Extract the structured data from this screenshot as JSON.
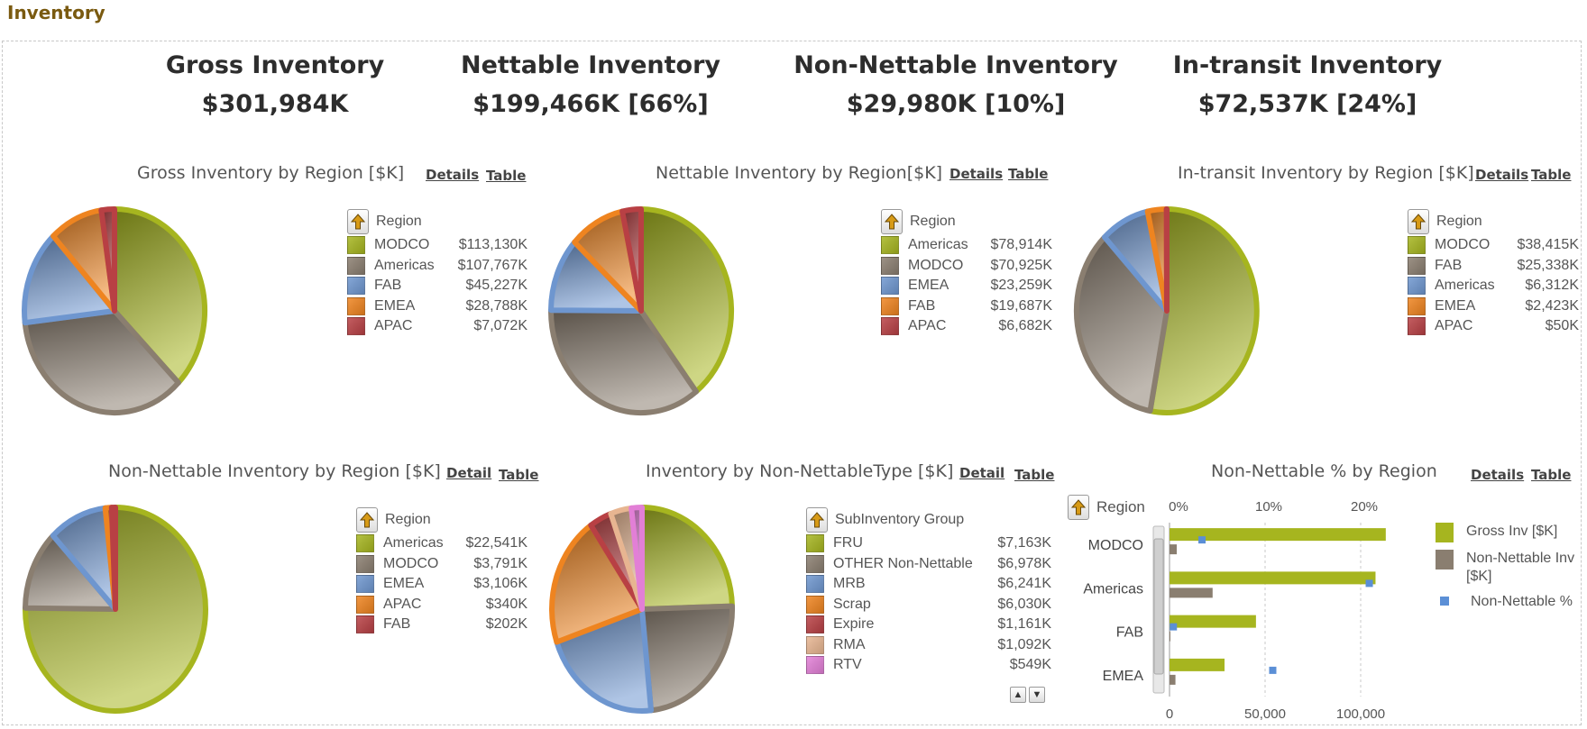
{
  "page_title": "Inventory",
  "kpis": [
    {
      "label": "Gross Inventory",
      "value": "$301,984K"
    },
    {
      "label": "Nettable Inventory",
      "value": "$199,466K [66%]"
    },
    {
      "label": "Non-Nettable Inventory",
      "value": "$29,980K [10%]"
    },
    {
      "label": "In-transit Inventory",
      "value": "$72,537K [24%]"
    }
  ],
  "links": {
    "details": "Details",
    "detail": "Detail",
    "table": "Table"
  },
  "colors": {
    "olive": "#a6b51f",
    "taupe": "#8a7e70",
    "blue": "#6e96cf",
    "orange": "#ee8420",
    "red": "#b84044",
    "peach": "#e7b591",
    "pink": "#e27fd6"
  },
  "chart_data": [
    {
      "type": "pie",
      "title": "Gross Inventory by Region [$K]",
      "legend_title": "Region",
      "labels": [
        "MODCO",
        "Americas",
        "FAB",
        "EMEA",
        "APAC"
      ],
      "display_values": [
        "$113,130K",
        "$107,767K",
        "$45,227K",
        "$28,788K",
        "$7,072K"
      ],
      "values": [
        113130,
        107767,
        45227,
        28788,
        7072
      ],
      "colors": [
        "#a6b51f",
        "#8a7e70",
        "#6e96cf",
        "#ee8420",
        "#b84044"
      ]
    },
    {
      "type": "pie",
      "title": "Nettable Inventory by Region[$K]",
      "legend_title": "Region",
      "labels": [
        "Americas",
        "MODCO",
        "EMEA",
        "FAB",
        "APAC"
      ],
      "display_values": [
        "$78,914K",
        "$70,925K",
        "$23,259K",
        "$19,687K",
        "$6,682K"
      ],
      "values": [
        78914,
        70925,
        23259,
        19687,
        6682
      ],
      "colors": [
        "#a6b51f",
        "#8a7e70",
        "#6e96cf",
        "#ee8420",
        "#b84044"
      ]
    },
    {
      "type": "pie",
      "title": "In-transit Inventory by Region [$K]",
      "legend_title": "Region",
      "labels": [
        "MODCO",
        "FAB",
        "Americas",
        "EMEA",
        "APAC"
      ],
      "display_values": [
        "$38,415K",
        "$25,338K",
        "$6,312K",
        "$2,423K",
        "$50K"
      ],
      "values": [
        38415,
        25338,
        6312,
        2423,
        50
      ],
      "colors": [
        "#a6b51f",
        "#8a7e70",
        "#6e96cf",
        "#ee8420",
        "#b84044"
      ]
    },
    {
      "type": "pie",
      "title": "Non-Nettable Inventory by Region [$K]",
      "legend_title": "Region",
      "labels": [
        "Americas",
        "MODCO",
        "EMEA",
        "APAC",
        "FAB"
      ],
      "display_values": [
        "$22,541K",
        "$3,791K",
        "$3,106K",
        "$340K",
        "$202K"
      ],
      "values": [
        22541,
        3791,
        3106,
        340,
        202
      ],
      "colors": [
        "#a6b51f",
        "#8a7e70",
        "#6e96cf",
        "#ee8420",
        "#b84044"
      ]
    },
    {
      "type": "pie",
      "title": "Inventory by Non-NettableType [$K]",
      "legend_title": "SubInventory Group",
      "labels": [
        "FRU",
        "OTHER Non-Nettable",
        "MRB",
        "Scrap",
        "Expire",
        "RMA",
        "RTV"
      ],
      "display_values": [
        "$7,163K",
        "$6,978K",
        "$6,241K",
        "$6,030K",
        "$1,161K",
        "$1,092K",
        "$549K"
      ],
      "values": [
        7163,
        6978,
        6241,
        6030,
        1161,
        1092,
        549
      ],
      "colors": [
        "#a6b51f",
        "#8a7e70",
        "#6e96cf",
        "#ee8420",
        "#b84044",
        "#e7b591",
        "#e27fd6"
      ]
    },
    {
      "type": "bar",
      "orientation": "horizontal",
      "title": "Non-Nettable % by Region",
      "legend_title": "Region",
      "categories": [
        "MODCO",
        "Americas",
        "FAB",
        "EMEA"
      ],
      "series": [
        {
          "name": "Gross Inv [$K]",
          "values": [
            113130,
            107767,
            45227,
            28788
          ],
          "color": "#a6b51f"
        },
        {
          "name": "Non-Nettable Inv [$K]",
          "values": [
            3791,
            22541,
            202,
            3106
          ],
          "color": "#8a7e70"
        }
      ],
      "pct_series": {
        "name": "Non-Nettable %",
        "values": [
          3.4,
          20.9,
          0.4,
          10.8
        ],
        "color": "#5b8fd6"
      },
      "x_ticks": [
        "0",
        "50,000",
        "100,000"
      ],
      "x_tick_values": [
        0,
        50000,
        100000
      ],
      "xlim": [
        0,
        125000
      ],
      "pct_ticks": [
        "0%",
        "10%",
        "20%"
      ],
      "pct_tick_values": [
        0,
        10,
        20
      ],
      "pct_lim": [
        0,
        25
      ],
      "grid": true,
      "legend_position": "right"
    }
  ]
}
